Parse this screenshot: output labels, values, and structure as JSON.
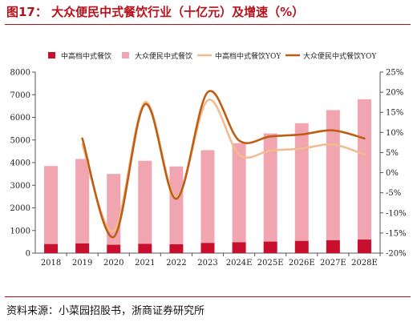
{
  "header": {
    "title": "图17：  大众便民中式餐饮行业（十亿元）及增速（%）"
  },
  "footer": {
    "source": "资料来源：小菜园招股书，浙商证券研究所"
  },
  "colors": {
    "dark_bar": "#c8102e",
    "light_bar": "#f1a5b0",
    "light_line": "#f2bc8e",
    "dark_line": "#bf5d14",
    "axis": "#555555",
    "title": "#b5121b"
  },
  "chart_data": {
    "type": "bar",
    "categories": [
      "2018",
      "2019",
      "2020",
      "2021",
      "2022",
      "2023",
      "2024E",
      "2025E",
      "2026E",
      "2027E",
      "2028E"
    ],
    "y_left": {
      "ylim": [
        0,
        8000
      ],
      "ticks": [
        "0",
        "1000",
        "2000",
        "3000",
        "4000",
        "5000",
        "6000",
        "7000",
        "8000"
      ]
    },
    "y_right": {
      "ylim": [
        -20,
        25
      ],
      "ticks": [
        "-20%",
        "-15%",
        "-10%",
        "-5%",
        "0%",
        "5%",
        "10%",
        "15%",
        "20%",
        "25%"
      ]
    },
    "series": [
      {
        "name": "中高档中式餐饮",
        "kind": "bar",
        "axis": "left",
        "values": [
          400,
          430,
          370,
          410,
          390,
          450,
          480,
          510,
          540,
          570,
          600
        ]
      },
      {
        "name": "大众便民中式餐饮",
        "kind": "bar",
        "axis": "left",
        "values": [
          3450,
          3730,
          3130,
          3670,
          3440,
          4100,
          4380,
          4780,
          5200,
          5750,
          6200
        ]
      },
      {
        "name": "中高档中式餐饮YOY",
        "kind": "line",
        "axis": "right",
        "values": [
          null,
          7.0,
          -14.5,
          17.5,
          -6.0,
          18.0,
          4.5,
          5.5,
          6.0,
          7.0,
          4.5
        ]
      },
      {
        "name": "大众便民中式餐饮YOY",
        "kind": "line",
        "axis": "right",
        "values": [
          null,
          8.5,
          -16.0,
          17.0,
          -6.5,
          20.0,
          8.0,
          9.0,
          9.5,
          10.5,
          8.5
        ]
      }
    ],
    "legend_position": "top",
    "grid": false
  }
}
